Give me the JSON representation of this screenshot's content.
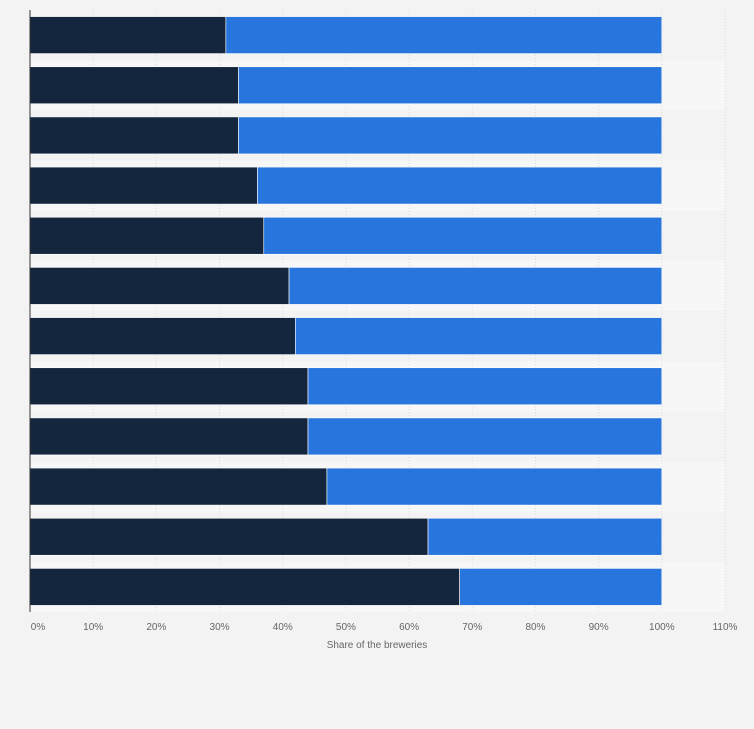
{
  "chart_data": {
    "type": "bar",
    "orientation": "horizontal",
    "stacked": true,
    "categories": [
      "",
      "",
      "",
      "",
      "",
      "",
      "",
      "",
      "",
      "",
      "",
      ""
    ],
    "series": [
      {
        "name": "",
        "color": "#14263e",
        "values": [
          31,
          33,
          33,
          36,
          37,
          41,
          42,
          44,
          44,
          47,
          63,
          68
        ]
      },
      {
        "name": "",
        "color": "#2876dd",
        "values": [
          69,
          67,
          67,
          64,
          63,
          59,
          58,
          56,
          56,
          53,
          37,
          32
        ]
      }
    ],
    "xlim": [
      0,
      110
    ],
    "xticks": [
      0,
      10,
      20,
      30,
      40,
      50,
      60,
      70,
      80,
      90,
      100,
      110
    ],
    "xtick_labels": [
      "0%",
      "10%",
      "20%",
      "30%",
      "40%",
      "50%",
      "60%",
      "70%",
      "80%",
      "90%",
      "100%",
      "110%"
    ],
    "xlabel": "Share of the breweries",
    "ylabel": "",
    "title": "",
    "grid": true
  },
  "colors": {
    "background": "#f3f3f3",
    "band_light": "#f7f7f7",
    "gridline": "#dcdcdc",
    "axis": "#333333"
  }
}
